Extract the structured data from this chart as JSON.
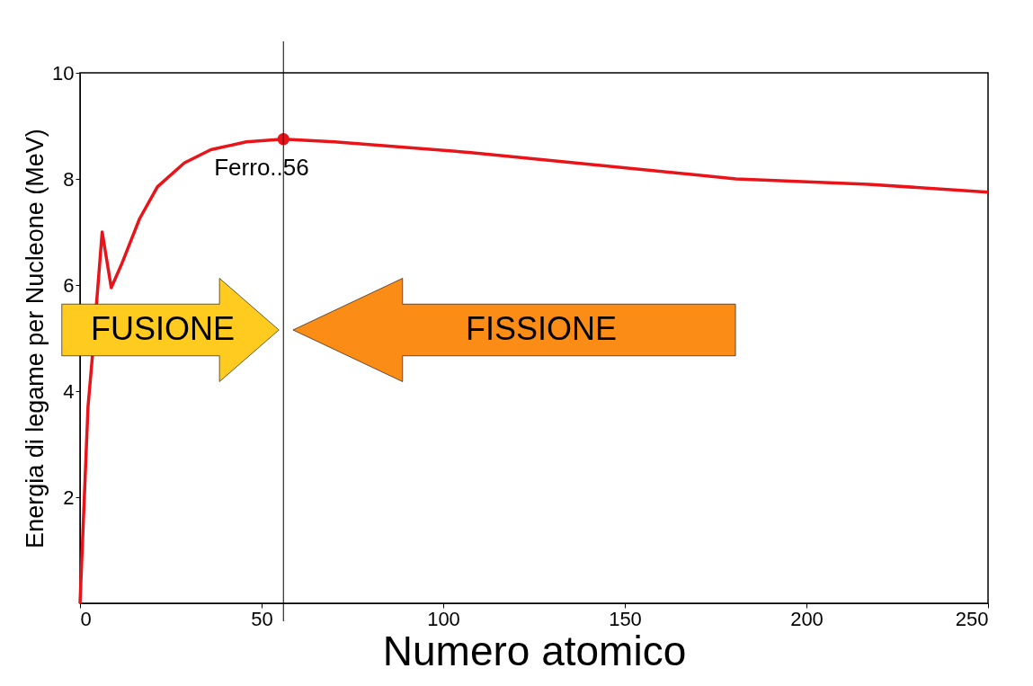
{
  "chart_data": {
    "type": "line",
    "xlabel": "Numero atomico",
    "ylabel": "Energia di legame per Nucleone (MeV)",
    "xlim": [
      0,
      250
    ],
    "xticks": [
      0,
      50,
      100,
      150,
      200,
      250
    ],
    "ylim": [
      0,
      10
    ],
    "yticks": [
      2,
      4,
      6,
      8,
      10
    ],
    "grid": false,
    "series": [
      {
        "color": "#e8141a",
        "marker": "none",
        "x": [
          0,
          2.2,
          3.4,
          6.1,
          8.6,
          11.5,
          16.4,
          21.3,
          28.7,
          36,
          45.8,
          56,
          70,
          107,
          144,
          180.6,
          217,
          250
        ],
        "values": [
          0,
          3.7,
          4.65,
          7.0,
          5.95,
          6.4,
          7.25,
          7.85,
          8.3,
          8.55,
          8.7,
          8.75,
          8.7,
          8.5,
          8.25,
          8.0,
          7.9,
          7.75
        ]
      },
      {
        "type": "scatter",
        "color": "#e8141a",
        "marker": "circle",
        "x": [
          56
        ],
        "values": [
          8.75
        ]
      }
    ],
    "ref_lines": [
      {
        "axis": "x",
        "value": 56,
        "color": "#000000"
      }
    ],
    "annotations": [
      {
        "text": "Ferro..56",
        "x": 56,
        "y": 8.75
      },
      "FUSIONE",
      "FISSIONE"
    ]
  }
}
